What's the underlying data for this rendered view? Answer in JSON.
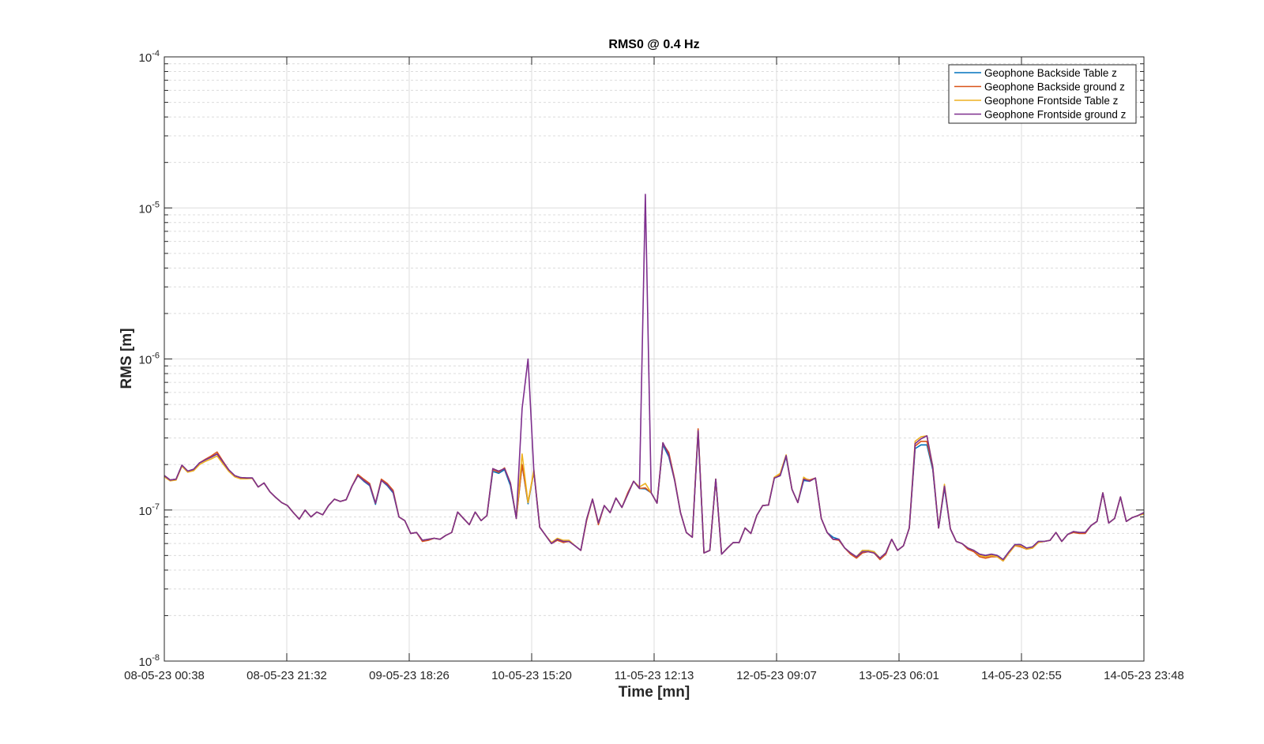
{
  "chart_data": {
    "type": "line",
    "title": "RMS0 @ 0.4 Hz",
    "xlabel": "Time [mn]",
    "ylabel": "RMS [m]",
    "yscale": "log",
    "ylim": [
      1e-08,
      0.0001
    ],
    "y_ticks": [
      {
        "value": 0.0001,
        "base": "10",
        "exp": "-4"
      },
      {
        "value": 1e-05,
        "base": "10",
        "exp": "-5"
      },
      {
        "value": 1e-06,
        "base": "10",
        "exp": "-6"
      },
      {
        "value": 1e-07,
        "base": "10",
        "exp": "-7"
      },
      {
        "value": 1e-08,
        "base": "10",
        "exp": "-8"
      }
    ],
    "x_range_hours": [
      0,
      167.17
    ],
    "x_sampling": "hourly samples, evenly spread from first to last tick",
    "x_tick_labels": [
      "08-05-23 00:38",
      "08-05-23 21:32",
      "09-05-23 18:26",
      "10-05-23 15:20",
      "11-05-23 12:13",
      "12-05-23 09:07",
      "13-05-23 06:01",
      "14-05-23 02:55",
      "14-05-23 23:48"
    ],
    "grid": true,
    "legend_position": "top-right",
    "series": [
      {
        "name": "Geophone Backside Table z",
        "color": "#0072BD",
        "values": [
          1.69e-07,
          1.58e-07,
          1.6e-07,
          1.98e-07,
          1.81e-07,
          1.86e-07,
          2.05e-07,
          2.15e-07,
          2.24e-07,
          2.35e-07,
          2.08e-07,
          1.84e-07,
          1.69e-07,
          1.64e-07,
          1.63e-07,
          1.63e-07,
          1.42e-07,
          1.51e-07,
          1.32e-07,
          1.21e-07,
          1.12e-07,
          1.07e-07,
          9.6e-08,
          8.7e-08,
          1e-07,
          9e-08,
          9.7e-08,
          9.3e-08,
          1.07e-07,
          1.18e-07,
          1.14e-07,
          1.17e-07,
          1.44e-07,
          1.69e-07,
          1.55e-07,
          1.45e-07,
          1.09e-07,
          1.57e-07,
          1.45e-07,
          1.3e-07,
          9e-08,
          8.5e-08,
          7e-08,
          7.1e-08,
          6.3e-08,
          6.4e-08,
          6.5e-08,
          6.4e-08,
          6.8e-08,
          7.1e-08,
          9.7e-08,
          8.8e-08,
          8e-08,
          9.7e-08,
          8.5e-08,
          9.2e-08,
          1.8e-07,
          1.75e-07,
          1.85e-07,
          1.45e-07,
          8.8e-08,
          2e-07,
          1.1e-07,
          1.8e-07,
          7.7e-08,
          6.8e-08,
          6e-08,
          6.4e-08,
          6.2e-08,
          6.2e-08,
          5.8e-08,
          5.4e-08,
          8.7e-08,
          1.18e-07,
          8.2e-08,
          1.07e-07,
          9.6e-08,
          1.2e-07,
          1.04e-07,
          1.27e-07,
          1.55e-07,
          1.39e-07,
          1.38e-07,
          1.3e-07,
          1.11e-07,
          2.7e-07,
          2.25e-07,
          1.57e-07,
          9.6e-08,
          7.1e-08,
          6.6e-08,
          3.3e-07,
          5.2e-08,
          5.4e-08,
          1.6e-07,
          5.1e-08,
          5.6e-08,
          6.1e-08,
          6.1e-08,
          7.6e-08,
          7e-08,
          9.2e-08,
          1.07e-07,
          1.08e-07,
          1.63e-07,
          1.69e-07,
          2.25e-07,
          1.37e-07,
          1.12e-07,
          1.57e-07,
          1.55e-07,
          1.63e-07,
          8.8e-08,
          7.1e-08,
          6.6e-08,
          6.4e-08,
          5.6e-08,
          5.2e-08,
          4.9e-08,
          5.4e-08,
          5.4e-08,
          5.3e-08,
          4.8e-08,
          5.2e-08,
          6.4e-08,
          5.4e-08,
          5.8e-08,
          7.6e-08,
          2.55e-07,
          2.7e-07,
          2.7e-07,
          1.85e-07,
          7.6e-08,
          1.4e-07,
          7.5e-08,
          6.2e-08,
          6e-08,
          5.6e-08,
          5.4e-08,
          5.1e-08,
          5e-08,
          5.1e-08,
          5e-08,
          4.7e-08,
          5.3e-08,
          5.9e-08,
          5.9e-08,
          5.6e-08,
          5.7e-08,
          6.2e-08,
          6.2e-08,
          6.3e-08,
          7.1e-08,
          6.2e-08,
          6.9e-08,
          7.2e-08,
          7.1e-08,
          7.1e-08,
          7.9e-08,
          8.4e-08,
          1.3e-07,
          8.2e-08,
          8.8e-08,
          1.22e-07,
          8.4e-08,
          8.9e-08,
          9.2e-08,
          9.6e-08
        ]
      },
      {
        "name": "Geophone Backside ground z",
        "color": "#D95319",
        "values": [
          1.69e-07,
          1.58e-07,
          1.6e-07,
          1.98e-07,
          1.81e-07,
          1.84e-07,
          2.05e-07,
          2.17e-07,
          2.28e-07,
          2.42e-07,
          2.1e-07,
          1.84e-07,
          1.69e-07,
          1.64e-07,
          1.63e-07,
          1.63e-07,
          1.42e-07,
          1.51e-07,
          1.32e-07,
          1.21e-07,
          1.12e-07,
          1.07e-07,
          9.6e-08,
          8.7e-08,
          1e-07,
          9e-08,
          9.7e-08,
          9.3e-08,
          1.07e-07,
          1.18e-07,
          1.14e-07,
          1.17e-07,
          1.44e-07,
          1.72e-07,
          1.6e-07,
          1.5e-07,
          1.11e-07,
          1.6e-07,
          1.5e-07,
          1.35e-07,
          9e-08,
          8.5e-08,
          7e-08,
          7.1e-08,
          6.2e-08,
          6.3e-08,
          6.5e-08,
          6.4e-08,
          6.8e-08,
          7.1e-08,
          9.7e-08,
          8.8e-08,
          8e-08,
          9.7e-08,
          8.5e-08,
          9.2e-08,
          1.85e-07,
          1.78e-07,
          1.9e-07,
          1.51e-07,
          8.8e-08,
          2e-07,
          1.12e-07,
          1.8e-07,
          7.7e-08,
          6.8e-08,
          6e-08,
          6.3e-08,
          6.1e-08,
          6.2e-08,
          5.8e-08,
          5.4e-08,
          8.5e-08,
          1.18e-07,
          8e-08,
          1.07e-07,
          9.6e-08,
          1.2e-07,
          1.04e-07,
          1.3e-07,
          1.55e-07,
          1.39e-07,
          1.4e-07,
          1.3e-07,
          1.11e-07,
          2.75e-07,
          2.4e-07,
          1.6e-07,
          9.6e-08,
          7.1e-08,
          6.6e-08,
          3.45e-07,
          5.2e-08,
          5.4e-08,
          1.6e-07,
          5.1e-08,
          5.6e-08,
          6.1e-08,
          6.1e-08,
          7.6e-08,
          7e-08,
          9.2e-08,
          1.07e-07,
          1.08e-07,
          1.65e-07,
          1.72e-07,
          2.29e-07,
          1.37e-07,
          1.12e-07,
          1.62e-07,
          1.58e-07,
          1.63e-07,
          8.8e-08,
          7.1e-08,
          6.4e-08,
          6.3e-08,
          5.6e-08,
          5.1e-08,
          4.8e-08,
          5.2e-08,
          5.3e-08,
          5.2e-08,
          4.7e-08,
          5.1e-08,
          6.4e-08,
          5.4e-08,
          5.8e-08,
          7.6e-08,
          2.65e-07,
          2.85e-07,
          2.85e-07,
          1.9e-07,
          7.6e-08,
          1.44e-07,
          7.5e-08,
          6.2e-08,
          6e-08,
          5.5e-08,
          5.3e-08,
          4.9e-08,
          4.8e-08,
          4.9e-08,
          4.9e-08,
          4.6e-08,
          5.2e-08,
          5.8e-08,
          5.7e-08,
          5.5e-08,
          5.6e-08,
          6.1e-08,
          6.2e-08,
          6.3e-08,
          7.1e-08,
          6.2e-08,
          6.9e-08,
          7.1e-08,
          7e-08,
          7e-08,
          7.9e-08,
          8.4e-08,
          1.3e-07,
          8.2e-08,
          8.8e-08,
          1.22e-07,
          8.4e-08,
          8.9e-08,
          9.2e-08,
          9.6e-08
        ]
      },
      {
        "name": "Geophone Frontside Table z",
        "color": "#EDB120",
        "values": [
          1.66e-07,
          1.56e-07,
          1.58e-07,
          1.95e-07,
          1.78e-07,
          1.82e-07,
          2e-07,
          2.1e-07,
          2.18e-07,
          2.28e-07,
          2.02e-07,
          1.8e-07,
          1.66e-07,
          1.61e-07,
          1.61e-07,
          1.62e-07,
          1.42e-07,
          1.51e-07,
          1.32e-07,
          1.21e-07,
          1.12e-07,
          1.07e-07,
          9.6e-08,
          8.7e-08,
          1e-07,
          9e-08,
          9.7e-08,
          9.3e-08,
          1.07e-07,
          1.18e-07,
          1.14e-07,
          1.17e-07,
          1.44e-07,
          1.69e-07,
          1.57e-07,
          1.47e-07,
          1.11e-07,
          1.57e-07,
          1.47e-07,
          1.32e-07,
          9e-08,
          8.5e-08,
          7e-08,
          7.1e-08,
          6.3e-08,
          6.4e-08,
          6.5e-08,
          6.4e-08,
          6.8e-08,
          7.1e-08,
          9.7e-08,
          8.8e-08,
          8e-08,
          9.7e-08,
          8.5e-08,
          9.2e-08,
          1.88e-07,
          1.81e-07,
          1.88e-07,
          1.51e-07,
          8.8e-08,
          2.35e-07,
          1.12e-07,
          1.85e-07,
          7.7e-08,
          6.8e-08,
          6.1e-08,
          6.5e-08,
          6.3e-08,
          6.3e-08,
          5.8e-08,
          5.4e-08,
          8.7e-08,
          1.18e-07,
          8.2e-08,
          1.07e-07,
          9.6e-08,
          1.2e-07,
          1.04e-07,
          1.27e-07,
          1.55e-07,
          1.42e-07,
          1.5e-07,
          1.3e-07,
          1.11e-07,
          2.79e-07,
          2.32e-07,
          1.57e-07,
          9.6e-08,
          7.1e-08,
          6.6e-08,
          3.35e-07,
          5.2e-08,
          5.4e-08,
          1.6e-07,
          5.1e-08,
          5.6e-08,
          6.1e-08,
          6.1e-08,
          7.6e-08,
          7e-08,
          9.2e-08,
          1.07e-07,
          1.08e-07,
          1.65e-07,
          1.75e-07,
          2.32e-07,
          1.37e-07,
          1.12e-07,
          1.65e-07,
          1.55e-07,
          1.63e-07,
          8.8e-08,
          7.1e-08,
          6.4e-08,
          6.4e-08,
          5.6e-08,
          5.2e-08,
          4.9e-08,
          5.4e-08,
          5.4e-08,
          5.3e-08,
          4.8e-08,
          5.2e-08,
          6.4e-08,
          5.4e-08,
          5.8e-08,
          7.6e-08,
          2.85e-07,
          3.05e-07,
          3.1e-07,
          1.95e-07,
          7.6e-08,
          1.48e-07,
          7.5e-08,
          6.2e-08,
          6e-08,
          5.6e-08,
          5.4e-08,
          5e-08,
          4.9e-08,
          5e-08,
          4.9e-08,
          4.6e-08,
          5.2e-08,
          5.8e-08,
          5.8e-08,
          5.5e-08,
          5.6e-08,
          6.1e-08,
          6.2e-08,
          6.3e-08,
          7.1e-08,
          6.2e-08,
          6.9e-08,
          7.2e-08,
          7.1e-08,
          7.1e-08,
          7.9e-08,
          8.4e-08,
          1.3e-07,
          8.2e-08,
          8.8e-08,
          1.22e-07,
          8.4e-08,
          8.9e-08,
          9.2e-08,
          9.4e-08
        ]
      },
      {
        "name": "Geophone Frontside ground z",
        "color": "#7E2F8E",
        "values": [
          1.69e-07,
          1.58e-07,
          1.6e-07,
          1.98e-07,
          1.81e-07,
          1.86e-07,
          2.05e-07,
          2.15e-07,
          2.24e-07,
          2.35e-07,
          2.08e-07,
          1.84e-07,
          1.69e-07,
          1.64e-07,
          1.63e-07,
          1.63e-07,
          1.42e-07,
          1.51e-07,
          1.32e-07,
          1.21e-07,
          1.12e-07,
          1.07e-07,
          9.6e-08,
          8.7e-08,
          1e-07,
          9e-08,
          9.7e-08,
          9.3e-08,
          1.07e-07,
          1.18e-07,
          1.14e-07,
          1.17e-07,
          1.44e-07,
          1.69e-07,
          1.57e-07,
          1.47e-07,
          1.11e-07,
          1.57e-07,
          1.47e-07,
          1.32e-07,
          9e-08,
          8.5e-08,
          7e-08,
          7.1e-08,
          6.3e-08,
          6.4e-08,
          6.5e-08,
          6.4e-08,
          6.8e-08,
          7.1e-08,
          9.7e-08,
          8.8e-08,
          8e-08,
          9.7e-08,
          8.5e-08,
          9.2e-08,
          1.88e-07,
          1.81e-07,
          1.88e-07,
          1.51e-07,
          8.8e-08,
          4.7e-07,
          1e-06,
          1.8e-07,
          7.7e-08,
          6.8e-08,
          6e-08,
          6.4e-08,
          6.2e-08,
          6.2e-08,
          5.8e-08,
          5.4e-08,
          8.7e-08,
          1.18e-07,
          8.2e-08,
          1.07e-07,
          9.6e-08,
          1.2e-07,
          1.04e-07,
          1.27e-07,
          1.55e-07,
          1.39e-07,
          1.23e-05,
          1.3e-07,
          1.11e-07,
          2.79e-07,
          2.32e-07,
          1.57e-07,
          9.6e-08,
          7.1e-08,
          6.6e-08,
          3.35e-07,
          5.2e-08,
          5.4e-08,
          1.6e-07,
          5.1e-08,
          5.6e-08,
          6.1e-08,
          6.1e-08,
          7.6e-08,
          7e-08,
          9.2e-08,
          1.07e-07,
          1.08e-07,
          1.63e-07,
          1.69e-07,
          2.29e-07,
          1.37e-07,
          1.12e-07,
          1.6e-07,
          1.55e-07,
          1.63e-07,
          8.8e-08,
          7.1e-08,
          6.4e-08,
          6.4e-08,
          5.6e-08,
          5.2e-08,
          4.9e-08,
          5.3e-08,
          5.3e-08,
          5.2e-08,
          4.8e-08,
          5.2e-08,
          6.4e-08,
          5.4e-08,
          5.8e-08,
          7.6e-08,
          2.75e-07,
          2.96e-07,
          3.1e-07,
          1.93e-07,
          7.6e-08,
          1.44e-07,
          7.5e-08,
          6.2e-08,
          6e-08,
          5.6e-08,
          5.4e-08,
          5.1e-08,
          5e-08,
          5.1e-08,
          5e-08,
          4.7e-08,
          5.3e-08,
          5.9e-08,
          5.9e-08,
          5.6e-08,
          5.7e-08,
          6.2e-08,
          6.2e-08,
          6.3e-08,
          7.1e-08,
          6.2e-08,
          6.9e-08,
          7.2e-08,
          7.1e-08,
          7.1e-08,
          7.9e-08,
          8.4e-08,
          1.3e-07,
          8.2e-08,
          8.8e-08,
          1.22e-07,
          8.4e-08,
          8.9e-08,
          9.2e-08,
          9.6e-08
        ]
      }
    ]
  }
}
